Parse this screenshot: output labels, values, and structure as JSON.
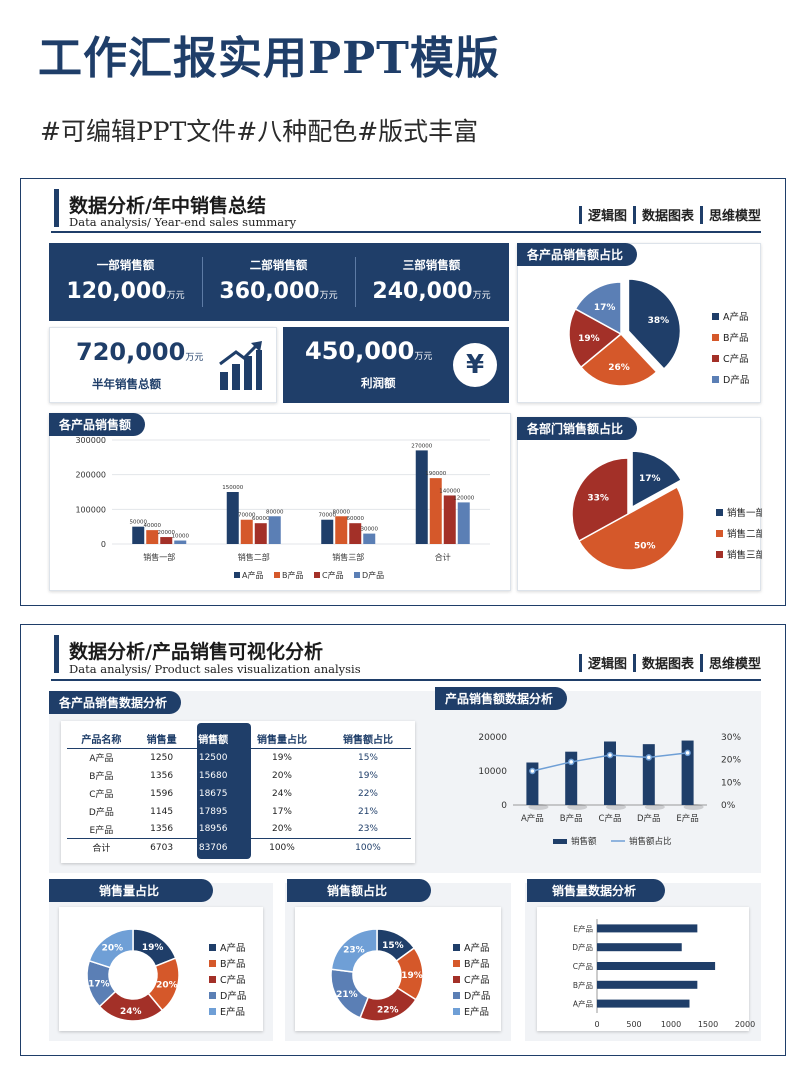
{
  "header": {
    "title": "工作汇报实用PPT模版",
    "subtitle": "#可编辑PPT文件#八种配色#版式丰富"
  },
  "nav": [
    "逻辑图",
    "数据图表",
    "思维模型"
  ],
  "colors": {
    "navy": "#1f3e69",
    "orange": "#d5582a",
    "red": "#a33028",
    "steel": "#5b7fb5",
    "sky": "#6f9fd6"
  },
  "slide1": {
    "title": "数据分析/年中销售总结",
    "subtitle": "Data analysis/ Year-end sales summary",
    "kpis": [
      {
        "label": "一部销售额",
        "value": "120,000",
        "unit": "万元"
      },
      {
        "label": "二部销售额",
        "value": "360,000",
        "unit": "万元"
      },
      {
        "label": "三部销售额",
        "value": "240,000",
        "unit": "万元"
      }
    ],
    "half": {
      "value": "720,000",
      "unit": "万元",
      "label": "半年销售总额",
      "icon": "growth-chart-icon"
    },
    "profit": {
      "value": "450,000",
      "unit": "万元",
      "label": "利润额",
      "icon": "yen-icon"
    },
    "pie1_title": "各产品销售额占比",
    "bar_title": "各产品销售额",
    "pie2_title": "各部门销售额占比"
  },
  "slide2": {
    "title": "数据分析/产品销售可视化分析",
    "subtitle": "Data analysis/ Product sales visualization analysis",
    "table_title": "各产品销售数据分析",
    "table": {
      "headers": [
        "产品名称",
        "销售量",
        "销售额",
        "销售量占比",
        "销售额占比"
      ],
      "rows": [
        [
          "A产品",
          "1250",
          "12500",
          "19%",
          "15%"
        ],
        [
          "B产品",
          "1356",
          "15680",
          "20%",
          "19%"
        ],
        [
          "C产品",
          "1596",
          "18675",
          "24%",
          "22%"
        ],
        [
          "D产品",
          "1145",
          "17895",
          "17%",
          "21%"
        ],
        [
          "E产品",
          "1356",
          "18956",
          "20%",
          "23%"
        ]
      ],
      "total": [
        "合计",
        "6703",
        "83706",
        "100%",
        "100%"
      ]
    },
    "combo_title": "产品销售额数据分析",
    "donut1_title": "销售量占比",
    "donut2_title": "销售额占比",
    "hbar_title": "销售量数据分析"
  },
  "chart_data": [
    {
      "id": "pie1",
      "type": "pie",
      "title": "各产品销售额占比",
      "labels": [
        "A产品",
        "B产品",
        "C产品",
        "D产品"
      ],
      "values": [
        38,
        26,
        19,
        17
      ],
      "value_labels": [
        "38%",
        "26%",
        "19%",
        "17%"
      ],
      "legend": "right"
    },
    {
      "id": "bar1",
      "type": "bar",
      "title": "各产品销售额",
      "categories": [
        "销售一部",
        "销售二部",
        "销售三部",
        "合计"
      ],
      "series": [
        {
          "name": "A产品",
          "values": [
            50000,
            150000,
            70000,
            270000
          ]
        },
        {
          "name": "B产品",
          "values": [
            40000,
            70000,
            80000,
            190000
          ]
        },
        {
          "name": "C产品",
          "values": [
            20000,
            60000,
            60000,
            140000
          ]
        },
        {
          "name": "D产品",
          "values": [
            10000,
            80000,
            30000,
            120000
          ]
        }
      ],
      "ylim": [
        0,
        300000
      ],
      "yticks": [
        "0",
        "100000",
        "200000",
        "300000"
      ],
      "legend": "bottom"
    },
    {
      "id": "pie2",
      "type": "pie",
      "labels": [
        "销售一部",
        "销售二部",
        "销售三部"
      ],
      "values": [
        17,
        50,
        33
      ],
      "value_labels": [
        "17%",
        "50%",
        "33%"
      ],
      "legend": "right"
    },
    {
      "id": "combo",
      "type": "bar",
      "categories": [
        "A产品",
        "B产品",
        "C产品",
        "D产品",
        "E产品"
      ],
      "series": [
        {
          "name": "销售额",
          "type": "bar",
          "values": [
            12500,
            15680,
            18675,
            17895,
            18956
          ]
        },
        {
          "name": "销售额占比",
          "type": "line",
          "values": [
            15,
            19,
            22,
            21,
            23
          ]
        }
      ],
      "ylim": [
        0,
        20000
      ],
      "y2lim": [
        0,
        30
      ],
      "yticks": [
        "0",
        "10000",
        "20000"
      ],
      "y2ticks": [
        "0%",
        "10%",
        "20%",
        "30%"
      ],
      "legend": "bottom"
    },
    {
      "id": "donut1",
      "type": "pie",
      "labels": [
        "A产品",
        "B产品",
        "C产品",
        "D产品",
        "E产品"
      ],
      "values": [
        19,
        20,
        24,
        17,
        20
      ],
      "value_labels": [
        "19%",
        "20%",
        "24%",
        "17%",
        "20%"
      ],
      "legend": "right"
    },
    {
      "id": "donut2",
      "type": "pie",
      "labels": [
        "A产品",
        "B产品",
        "C产品",
        "D产品",
        "E产品"
      ],
      "values": [
        15,
        19,
        22,
        21,
        23
      ],
      "value_labels": [
        "15%",
        "19%",
        "22%",
        "21%",
        "23%"
      ],
      "legend": "right"
    },
    {
      "id": "hbar",
      "type": "bar",
      "categories": [
        "A产品",
        "B产品",
        "C产品",
        "D产品",
        "E产品"
      ],
      "values": [
        1250,
        1356,
        1596,
        1145,
        1356
      ],
      "xlim": [
        0,
        2000
      ],
      "xticks": [
        "0",
        "500",
        "1000",
        "1500",
        "2000"
      ]
    }
  ]
}
